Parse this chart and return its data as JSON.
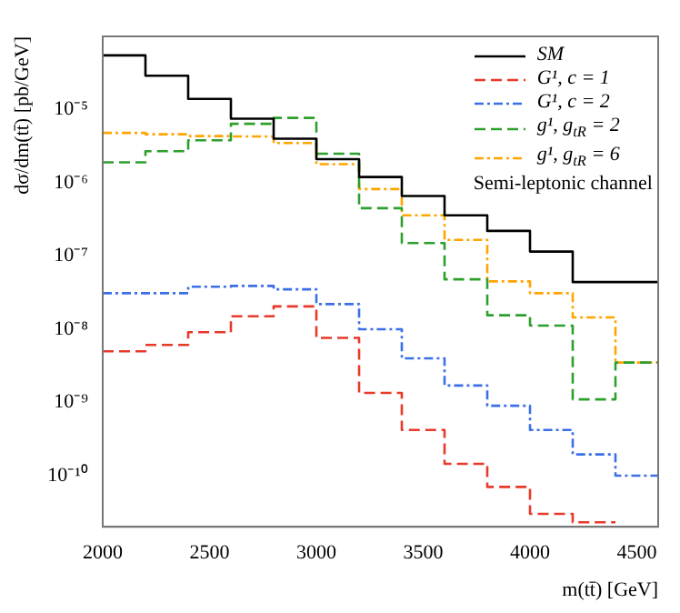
{
  "chart_data": {
    "type": "step",
    "xlabel": "m(tt̄) [GeV]",
    "ylabel": "dσ/dm(tt̄) [pb/GeV]",
    "x": [
      2000,
      2200,
      2400,
      2600,
      2800,
      3000,
      3200,
      3400,
      3600,
      3800,
      4000,
      4200,
      4400,
      4600
    ],
    "series": [
      {
        "name": "SM",
        "color": "#000000",
        "line_style": "solid",
        "values": [
          5.5e-05,
          2.9e-05,
          1.4e-05,
          7.5e-06,
          4e-06,
          2.1e-06,
          1.2e-06,
          6.6e-07,
          3.6e-07,
          2.2e-07,
          1.15e-07,
          4.4e-08,
          4.4e-08,
          4.4e-08
        ]
      },
      {
        "name": "G¹, c = 1",
        "color": "#e8392b",
        "line_style": "dashed",
        "values": [
          5e-09,
          6.1e-09,
          9.1e-09,
          1.5e-08,
          2.05e-08,
          7.6e-09,
          1.35e-09,
          4.2e-10,
          1.45e-10,
          7e-11,
          3e-11,
          2.3e-11,
          2.3e-11,
          null
        ]
      },
      {
        "name": "G¹, c = 2",
        "color": "#3a6fe8",
        "line_style": "dashdot",
        "values": [
          3.1e-08,
          3.1e-08,
          3.8e-08,
          3.9e-08,
          3.5e-08,
          2.2e-08,
          1e-08,
          4e-09,
          1.7e-09,
          9e-10,
          4.2e-10,
          1.95e-10,
          1e-10,
          1e-10
        ]
      },
      {
        "name": "g¹, g$_{tR}$ = 2",
        "color": "#2ca02c",
        "line_style": "dashed",
        "values": [
          1.9e-06,
          2.7e-06,
          3.8e-06,
          6.4e-06,
          7.7e-06,
          2.5e-06,
          4.5e-07,
          1.5e-07,
          4.8e-08,
          1.55e-08,
          1.12e-08,
          1.1e-09,
          3.5e-09,
          3.5e-09
        ]
      },
      {
        "name": "g¹, g$_{tR}$ = 6",
        "color": "#ffa500",
        "line_style": "dashdot",
        "values": [
          4.8e-06,
          4.6e-06,
          4.35e-06,
          4.3e-06,
          3.5e-06,
          1.8e-06,
          8.2e-07,
          3.6e-07,
          1.66e-07,
          4.5e-08,
          3.1e-08,
          1.45e-08,
          3.5e-09,
          3.5e-09
        ]
      }
    ],
    "log": "y",
    "xlim": [
      2000,
      4600
    ],
    "xticks": [
      2000,
      2500,
      3000,
      3500,
      4000,
      4500
    ],
    "ylim": [
      2e-11,
      0.0001
    ],
    "yticks": [
      {
        "value": 1e-10,
        "label": "10⁻¹⁰"
      },
      {
        "value": 1e-09,
        "label": "10⁻⁹"
      },
      {
        "value": 1e-08,
        "label": "10⁻⁸"
      },
      {
        "value": 1e-07,
        "label": "10⁻⁷"
      },
      {
        "value": 1e-06,
        "label": "10⁻⁶"
      },
      {
        "value": 1e-05,
        "label": "10⁻⁵"
      }
    ],
    "grid": false,
    "legend": "top right",
    "annotations": [
      "Semi-leptonic channel"
    ]
  }
}
